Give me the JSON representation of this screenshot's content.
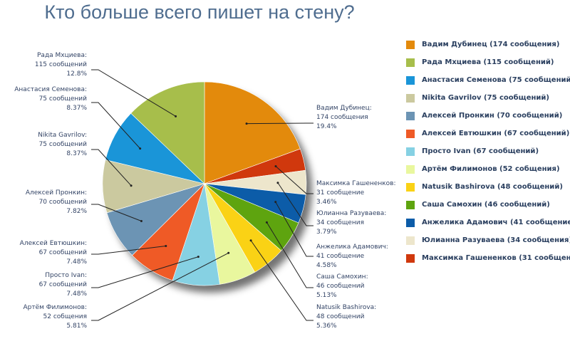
{
  "chart_data": {
    "type": "pie",
    "title": "Кто больше всего пишет на стену?",
    "slices": [
      {
        "name": "Вадим Дубинец",
        "value": 174,
        "value_label": "174 сообщения",
        "percent_label": "19.4%",
        "color": "#e38a0c",
        "legend_label": "Вадим Дубинец (174 сообщения)"
      },
      {
        "name": "Максимка Гашененков",
        "value": 31,
        "value_label": "31 сообщение",
        "percent_label": "3.46%",
        "color": "#d0380d",
        "legend_label": "Максимка Гашененков (31 сообщение"
      },
      {
        "name": "Юлианна Разуваева",
        "value": 34,
        "value_label": "34 сообщения",
        "percent_label": "3.79%",
        "color": "#ede6cc",
        "legend_label": "Юлианна Разуваева (34 сообщения)"
      },
      {
        "name": "Анжелика Адамович",
        "value": 41,
        "value_label": "41 сообщение",
        "percent_label": "4.58%",
        "color": "#0c5ca8",
        "legend_label": "Анжелика Адамович (41 сообщение"
      },
      {
        "name": "Саша Самохин",
        "value": 46,
        "value_label": "46 сообщений",
        "percent_label": "5.13%",
        "color": "#5ea40f",
        "legend_label": "Саша Самохин (46 сообщений)"
      },
      {
        "name": "Natusik Bashirova",
        "value": 48,
        "value_label": "48 сообщений",
        "percent_label": "5.36%",
        "color": "#fad215",
        "legend_label": "Natusik Bashirova (48 сообщений)"
      },
      {
        "name": "Артём Филимонов",
        "value": 52,
        "value_label": "52 собщения",
        "percent_label": "5.81%",
        "color": "#e9f79e",
        "legend_label": "Артём Филимонов (52 собщения)"
      },
      {
        "name": "Просто Ivan",
        "value": 67,
        "value_label": "67 сообщений",
        "percent_label": "7.48%",
        "color": "#86d1e3",
        "legend_label": "Просто Ivan (67 сообщений)"
      },
      {
        "name": "Алексей Евтюшкин",
        "value": 67,
        "value_label": "67 сообщений",
        "percent_label": "7.48%",
        "color": "#ef5a26",
        "legend_label": "Алексей Евтюшкин (67 сообщений)"
      },
      {
        "name": "Алексей Пронкин",
        "value": 70,
        "value_label": "70 сообщений",
        "percent_label": "7.82%",
        "color": "#6c94b4",
        "legend_label": "Алексей Пронкин (70 сообщений)"
      },
      {
        "name": "Nikita Gavrilov",
        "value": 75,
        "value_label": "75 сообщений",
        "percent_label": "8.37%",
        "color": "#cbc99f",
        "legend_label": "Nikita Gavrilov (75 сообщений)"
      },
      {
        "name": "Анастасия Семенова",
        "value": 75,
        "value_label": "75 сообщений",
        "percent_label": "8.37%",
        "color": "#1a95d8",
        "legend_label": "Анастасия Семенова (75 сообщений)"
      },
      {
        "name": "Рада Мхциева",
        "value": 115,
        "value_label": "115 сообщений",
        "percent_label": "12.8%",
        "color": "#a7be4b",
        "legend_label": "Рада Мхциева (115 сообщений)"
      }
    ],
    "legend_order": [
      "Вадим Дубинец",
      "Рада Мхциева",
      "Анастасия Семенова",
      "Nikita Gavrilov",
      "Алексей Пронкин",
      "Алексей Евтюшкин",
      "Просто Ivan",
      "Артём Филимонов",
      "Natusik Bashirova",
      "Саша Самохин",
      "Анжелика Адамович",
      "Юлианна Разуваева",
      "Максимка Гашененков"
    ],
    "legend_position": "right",
    "start_angle_deg": 90,
    "direction": "clockwise"
  }
}
